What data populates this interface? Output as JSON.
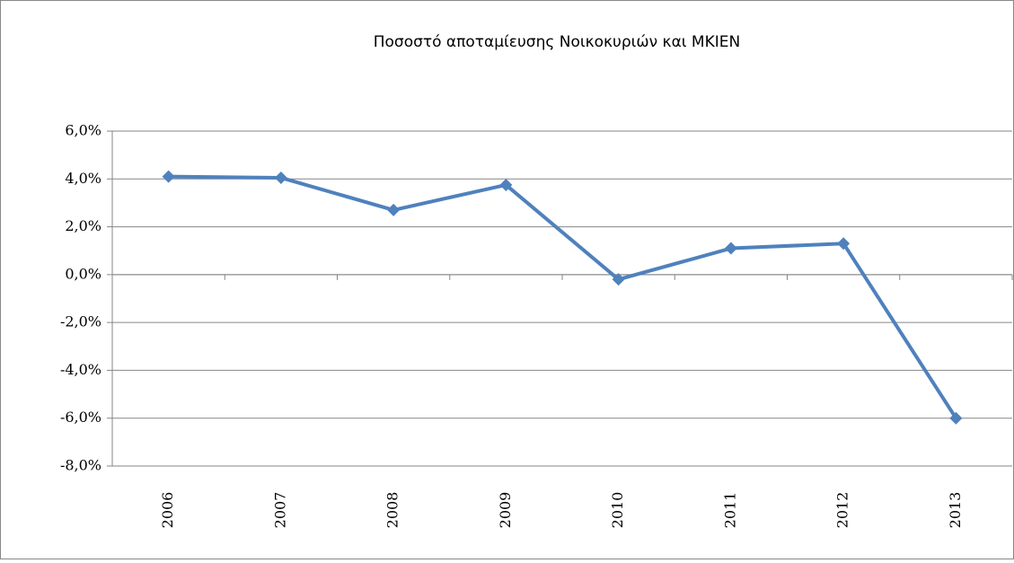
{
  "chart_data": {
    "type": "line",
    "title": "Ποσοστό αποταμίευσης Νοικοκυριών και ΜΚΙΕΝ",
    "categories": [
      "2006",
      "2007",
      "2008",
      "2009",
      "2010",
      "2011",
      "2012",
      "2013"
    ],
    "values": [
      4.1,
      4.05,
      2.7,
      3.75,
      -0.2,
      1.1,
      1.3,
      -6.0
    ],
    "color": "#4f81bd",
    "ylim": [
      -8,
      6
    ],
    "yticks": [
      {
        "value": -8,
        "label": "-8,0%"
      },
      {
        "value": -6,
        "label": "-6,0%"
      },
      {
        "value": -4,
        "label": "-4,0%"
      },
      {
        "value": -2,
        "label": "-2,0%"
      },
      {
        "value": 0,
        "label": "0,0%"
      },
      {
        "value": 2,
        "label": "2,0%"
      },
      {
        "value": 4,
        "label": "4,0%"
      },
      {
        "value": 6,
        "label": "6,0%"
      }
    ],
    "grid": true
  }
}
